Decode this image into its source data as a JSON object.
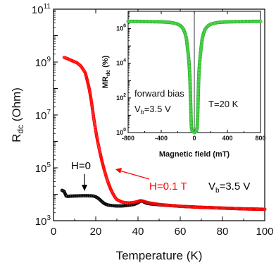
{
  "chart_data": [
    {
      "type": "scatter",
      "title": "",
      "xlabel": "Temperature (K)",
      "ylabel_main": "R",
      "ylabel_sub": "dc",
      "ylabel_unit": " (Ohm)",
      "xlim": [
        0,
        100
      ],
      "ylim": [
        1000,
        100000000000
      ],
      "yscale": "log",
      "x_ticks": [
        0,
        20,
        40,
        60,
        80,
        100
      ],
      "y_ticks": [
        {
          "value": 1000,
          "base": "10",
          "exp": "3"
        },
        {
          "value": 100000,
          "base": "10",
          "exp": "5"
        },
        {
          "value": 10000000,
          "base": "10",
          "exp": "7"
        },
        {
          "value": 1000000000,
          "base": "10",
          "exp": "9"
        },
        {
          "value": 100000000000,
          "base": "10",
          "exp": "11"
        }
      ],
      "series": [
        {
          "name": "H=0",
          "color": "#000000",
          "points": [
            [
              4,
              14000
            ],
            [
              5,
              13000
            ],
            [
              6,
              8500
            ],
            [
              7,
              8300
            ],
            [
              8,
              8500
            ],
            [
              10,
              8600
            ],
            [
              12,
              8700
            ],
            [
              14,
              8800
            ],
            [
              16,
              8800
            ],
            [
              18,
              8700
            ],
            [
              19,
              8500
            ],
            [
              20,
              8000
            ],
            [
              21,
              7200
            ],
            [
              22,
              6200
            ],
            [
              23,
              5200
            ],
            [
              24,
              4500
            ],
            [
              25,
              4100
            ],
            [
              26,
              3900
            ],
            [
              28,
              3700
            ],
            [
              30,
              3600
            ],
            [
              32,
              3600
            ],
            [
              34,
              3700
            ],
            [
              36,
              3900
            ],
            [
              38,
              4100
            ],
            [
              39,
              4400
            ],
            [
              40,
              4800
            ],
            [
              41,
              5400
            ],
            [
              42,
              5500
            ],
            [
              43,
              5000
            ],
            [
              44,
              4600
            ],
            [
              46,
              4300
            ],
            [
              50,
              4000
            ],
            [
              60,
              3500
            ],
            [
              70,
              3200
            ],
            [
              80,
              3000
            ],
            [
              90,
              2800
            ],
            [
              100,
              2700
            ]
          ]
        },
        {
          "name": "H=0.1 T",
          "color": "#ff0000",
          "points": [
            [
              5,
              1500000000
            ],
            [
              7,
              1300000000
            ],
            [
              9,
              1100000000
            ],
            [
              11,
              950000000
            ],
            [
              13,
              700000000
            ],
            [
              15,
              400000000
            ],
            [
              16,
              200000000
            ],
            [
              17,
              90000000
            ],
            [
              18,
              30000000
            ],
            [
              19,
              8000000
            ],
            [
              20,
              2500000
            ],
            [
              21,
              900000
            ],
            [
              22,
              380000
            ],
            [
              23,
              170000
            ],
            [
              24,
              85000
            ],
            [
              25,
              45000
            ],
            [
              26,
              26000
            ],
            [
              27,
              16000
            ],
            [
              28,
              11000
            ],
            [
              29,
              8000
            ],
            [
              30,
              6300
            ],
            [
              32,
              5200
            ],
            [
              34,
              4800
            ],
            [
              36,
              4700
            ],
            [
              38,
              4900
            ],
            [
              40,
              5300
            ],
            [
              41,
              5700
            ],
            [
              42,
              5600
            ],
            [
              44,
              5000
            ],
            [
              46,
              4600
            ],
            [
              50,
              4100
            ],
            [
              60,
              3500
            ],
            [
              70,
              3200
            ],
            [
              80,
              3000
            ],
            [
              90,
              2800
            ],
            [
              100,
              2700
            ]
          ]
        }
      ],
      "annotations": {
        "h0_label": "H=0",
        "h01_label": "H=0.1 T",
        "vb_main": "V",
        "vb_sub": "b",
        "vb_value": "=3.5 V"
      }
    },
    {
      "type": "scatter",
      "title": "",
      "xlabel": "Magnetic field (mT)",
      "ylabel_main": "MR",
      "ylabel_sub": "dc",
      "ylabel_unit": " (%)",
      "xlim": [
        -800,
        800
      ],
      "ylim": [
        1,
        10000000
      ],
      "yscale": "log",
      "x_ticks": [
        -800,
        -400,
        0,
        400,
        800
      ],
      "y_ticks": [
        {
          "value": 1,
          "base": "10",
          "exp": "0"
        },
        {
          "value": 100,
          "base": "10",
          "exp": "2"
        },
        {
          "value": 10000,
          "base": "10",
          "exp": "4"
        },
        {
          "value": 1000000,
          "base": "10",
          "exp": "6"
        }
      ],
      "series": [
        {
          "name": "",
          "color": "#22aa22",
          "points": [
            [
              -800,
              2600000
            ],
            [
              -700,
              2600000
            ],
            [
              -600,
              2550000
            ],
            [
              -500,
              2500000
            ],
            [
              -400,
              2450000
            ],
            [
              -300,
              2300000
            ],
            [
              -250,
              2100000
            ],
            [
              -200,
              1800000
            ],
            [
              -170,
              1500000
            ],
            [
              -150,
              1200000
            ],
            [
              -130,
              900000
            ],
            [
              -110,
              500000
            ],
            [
              -95,
              250000
            ],
            [
              -85,
              100000
            ],
            [
              -75,
              40000
            ],
            [
              -65,
              12000
            ],
            [
              -58,
              4000
            ],
            [
              -52,
              1000
            ],
            [
              -48,
              200
            ],
            [
              -44,
              40
            ],
            [
              -40,
              8
            ],
            [
              -35,
              2
            ],
            [
              -25,
              1.2
            ],
            [
              0,
              1
            ],
            [
              25,
              1.2
            ],
            [
              35,
              2
            ],
            [
              40,
              8
            ],
            [
              44,
              40
            ],
            [
              48,
              200
            ],
            [
              52,
              1000
            ],
            [
              58,
              4000
            ],
            [
              65,
              12000
            ],
            [
              75,
              40000
            ],
            [
              85,
              100000
            ],
            [
              95,
              250000
            ],
            [
              110,
              500000
            ],
            [
              130,
              900000
            ],
            [
              150,
              1200000
            ],
            [
              170,
              1500000
            ],
            [
              200,
              1800000
            ],
            [
              250,
              2100000
            ],
            [
              300,
              2300000
            ],
            [
              400,
              2450000
            ],
            [
              500,
              2500000
            ],
            [
              600,
              2550000
            ],
            [
              700,
              2600000
            ],
            [
              800,
              2600000
            ]
          ]
        }
      ],
      "annotations": {
        "forward_bias": "forward bias",
        "vb_main": "V",
        "vb_sub": "b",
        "vb_value": "=3.5 V",
        "temperature": "T=20 K"
      }
    }
  ]
}
